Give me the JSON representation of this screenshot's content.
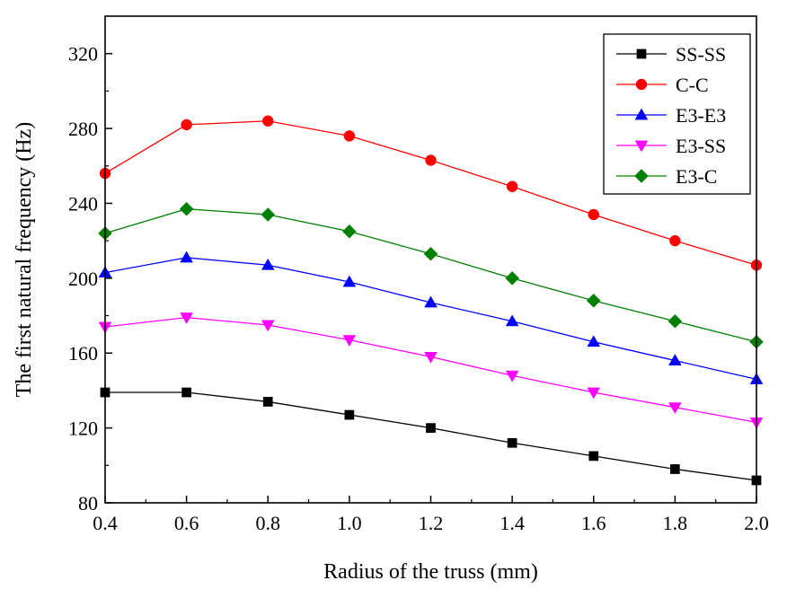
{
  "chart_data": {
    "type": "line",
    "title": "",
    "xlabel": "Radius of the truss (mm)",
    "ylabel": "The first natural frequency (Hz)",
    "xlim": [
      0.4,
      2.0
    ],
    "ylim": [
      80,
      340
    ],
    "x_ticks": [
      0.4,
      0.6,
      0.8,
      1.0,
      1.2,
      1.4,
      1.6,
      1.8,
      2.0
    ],
    "x_tick_labels": [
      "0.4",
      "0.6",
      "0.8",
      "1.0",
      "1.2",
      "1.4",
      "1.6",
      "1.8",
      "2.0"
    ],
    "y_ticks": [
      80,
      120,
      160,
      200,
      240,
      280,
      320
    ],
    "y_tick_labels": [
      "80",
      "120",
      "160",
      "200",
      "240",
      "280",
      "320"
    ],
    "legend_position": "top-right",
    "x": [
      0.4,
      0.6,
      0.8,
      1.0,
      1.2,
      1.4,
      1.6,
      1.8,
      2.0
    ],
    "series": [
      {
        "name": "SS-SS",
        "color": "#000000",
        "marker": "square",
        "values": [
          139,
          139,
          134,
          127,
          120,
          112,
          105,
          98,
          92
        ]
      },
      {
        "name": "C-C",
        "color": "#ff0000",
        "marker": "circle",
        "values": [
          256,
          282,
          284,
          276,
          263,
          249,
          234,
          220,
          207
        ]
      },
      {
        "name": "E3-E3",
        "color": "#0000ff",
        "marker": "triangle-up",
        "values": [
          203,
          211,
          207,
          198,
          187,
          177,
          166,
          156,
          146
        ]
      },
      {
        "name": "E3-SS",
        "color": "#ff00ff",
        "marker": "triangle-down",
        "values": [
          174,
          179,
          175,
          167,
          158,
          148,
          139,
          131,
          123
        ]
      },
      {
        "name": "E3-C",
        "color": "#008000",
        "marker": "diamond",
        "values": [
          224,
          237,
          234,
          225,
          213,
          200,
          188,
          177,
          166
        ]
      }
    ]
  }
}
